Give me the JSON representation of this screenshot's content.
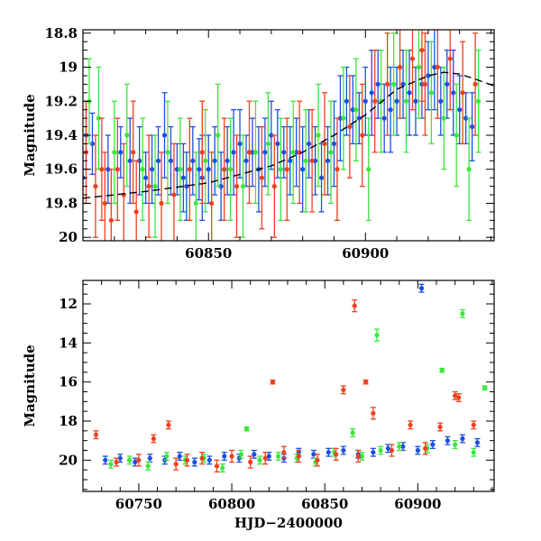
{
  "colors": {
    "blue": "#1a4fe0",
    "green": "#3ce63c",
    "red": "#f0401e",
    "model": "#000000"
  },
  "chart_data": [
    {
      "type": "scatter",
      "title": "",
      "xlabel": "",
      "ylabel": "Magnitude",
      "xlim": [
        60810,
        60941
      ],
      "ylim": [
        20.02,
        18.78
      ],
      "y_inverted": true,
      "xticks": [
        60850,
        60900
      ],
      "yticks": [
        18.8,
        19,
        19.2,
        19.4,
        19.6,
        19.8,
        20
      ],
      "ytick_labels": [
        "18.8",
        "19",
        "19.2",
        "19.4",
        "19.6",
        "19.8",
        "20"
      ],
      "xtick_labels": [
        "60850",
        "60900"
      ],
      "model_curve": {
        "style": "dashed",
        "x": [
          60810,
          60830,
          60850,
          60870,
          60880,
          60890,
          60900,
          60910,
          60920,
          60925,
          60930,
          60935,
          60941
        ],
        "y": [
          19.77,
          19.73,
          19.68,
          19.58,
          19.5,
          19.4,
          19.28,
          19.13,
          19.05,
          19.03,
          19.04,
          19.07,
          19.11
        ]
      },
      "series": [
        {
          "color": "blue",
          "x": [
            60810,
            60811,
            60813,
            60818,
            60822,
            60825,
            60828,
            60830,
            60832,
            60834,
            60836,
            60838,
            60840,
            60842,
            60843,
            60845,
            60847,
            60848,
            60850,
            60852,
            60854,
            60856,
            60858,
            60860,
            60862,
            60864,
            60866,
            60868,
            60870,
            60872,
            60874,
            60876,
            60878,
            60880,
            60882,
            60884,
            60886,
            60888,
            60890,
            60892,
            60894,
            60896,
            60898,
            60900,
            60902,
            60904,
            60906,
            60908,
            60910,
            60912,
            60914,
            60916,
            60918,
            60920,
            60922,
            60924,
            60926,
            60928,
            60930,
            60932,
            60934
          ],
          "y": [
            19.65,
            19.4,
            19.45,
            19.6,
            19.5,
            19.55,
            19.55,
            19.65,
            19.6,
            19.55,
            19.4,
            19.55,
            19.6,
            19.65,
            19.7,
            19.55,
            19.6,
            19.65,
            19.6,
            19.55,
            19.7,
            19.55,
            19.5,
            19.45,
            19.55,
            19.5,
            19.6,
            19.5,
            19.4,
            19.45,
            19.5,
            19.55,
            19.5,
            19.6,
            19.45,
            19.55,
            19.65,
            19.55,
            19.45,
            19.3,
            19.2,
            19.25,
            19.3,
            19.2,
            19.15,
            19.1,
            19.3,
            19.25,
            19.2,
            19.1,
            19.15,
            19.2,
            19.1,
            19.05,
            19.0,
            19.2,
            19.1,
            19.15,
            19.25,
            19.3,
            19.35
          ],
          "yerr": [
            0.15,
            0.2,
            0.18,
            0.2,
            0.15,
            0.25,
            0.2,
            0.15,
            0.2,
            0.2,
            0.25,
            0.2,
            0.15,
            0.2,
            0.2,
            0.2,
            0.18,
            0.25,
            0.2,
            0.2,
            0.2,
            0.2,
            0.25,
            0.2,
            0.15,
            0.2,
            0.25,
            0.2,
            0.2,
            0.2,
            0.15,
            0.2,
            0.2,
            0.25,
            0.2,
            0.2,
            0.2,
            0.2,
            0.25,
            0.25,
            0.2,
            0.2,
            0.15,
            0.2,
            0.25,
            0.2,
            0.2,
            0.25,
            0.2,
            0.2,
            0.25,
            0.2,
            0.2,
            0.2,
            0.25,
            0.2,
            0.2,
            0.25,
            0.2,
            0.15,
            0.2
          ]
        },
        {
          "color": "green",
          "x": [
            60812,
            60815,
            60820,
            60824,
            60829,
            60833,
            60837,
            60841,
            60846,
            60849,
            60853,
            60857,
            60861,
            60865,
            60869,
            60873,
            60877,
            60881,
            60885,
            60889,
            60893,
            60897,
            60901,
            60905,
            60909,
            60913,
            60917,
            60921,
            60925,
            60929,
            60933,
            60936
          ],
          "y": [
            19.2,
            19.3,
            19.5,
            19.4,
            19.6,
            19.7,
            19.5,
            19.6,
            19.8,
            19.55,
            19.4,
            19.6,
            19.7,
            19.5,
            19.45,
            19.6,
            19.5,
            19.55,
            19.4,
            19.5,
            19.3,
            19.25,
            19.6,
            19.2,
            19.1,
            19.2,
            19.0,
            19.15,
            19.3,
            19.4,
            19.6,
            19.2
          ],
          "yerr": [
            0.25,
            0.3,
            0.3,
            0.3,
            0.3,
            0.3,
            0.3,
            0.3,
            0.3,
            0.3,
            0.3,
            0.3,
            0.3,
            0.3,
            0.3,
            0.3,
            0.3,
            0.3,
            0.3,
            0.3,
            0.3,
            0.3,
            0.3,
            0.3,
            0.3,
            0.3,
            0.3,
            0.3,
            0.3,
            0.3,
            0.3,
            0.3
          ]
        },
        {
          "color": "red",
          "x": [
            60811,
            60814,
            60816,
            60817,
            60819,
            60821,
            60823,
            60826,
            60827,
            60831,
            60835,
            60839,
            60844,
            60848,
            60851,
            60855,
            60859,
            60863,
            60867,
            60871,
            60875,
            60879,
            60883,
            60887,
            60891,
            60895,
            60899,
            60903,
            60907,
            60911,
            60915,
            60918,
            60919,
            60923,
            60927,
            60931,
            60935
          ],
          "y": [
            19.5,
            19.7,
            19.6,
            19.8,
            19.9,
            19.6,
            19.75,
            19.5,
            19.85,
            19.7,
            19.8,
            19.75,
            19.6,
            19.5,
            19.8,
            19.6,
            19.7,
            19.5,
            19.65,
            19.7,
            19.6,
            19.5,
            19.55,
            19.45,
            19.6,
            19.35,
            19.4,
            19.2,
            19.1,
            19.0,
            18.95,
            18.9,
            19.1,
            19.0,
            18.95,
            19.15,
            19.1
          ],
          "yerr": [
            0.3,
            0.3,
            0.3,
            0.3,
            0.3,
            0.3,
            0.3,
            0.3,
            0.3,
            0.3,
            0.3,
            0.3,
            0.3,
            0.3,
            0.3,
            0.3,
            0.3,
            0.3,
            0.3,
            0.3,
            0.3,
            0.3,
            0.3,
            0.3,
            0.3,
            0.3,
            0.3,
            0.3,
            0.3,
            0.3,
            0.3,
            0.3,
            0.3,
            0.3,
            0.3,
            0.3,
            0.3
          ]
        }
      ]
    },
    {
      "type": "scatter",
      "title": "",
      "xlabel": "HJD−2400000",
      "ylabel": "Magnitude",
      "xlim": [
        60720,
        60941
      ],
      "ylim": [
        21.6,
        10.8
      ],
      "y_inverted": true,
      "xticks": [
        60750,
        60800,
        60850,
        60900
      ],
      "xtick_labels": [
        "60750",
        "60800",
        "60850",
        "60900"
      ],
      "yticks": [
        12,
        14,
        16,
        18,
        20
      ],
      "ytick_labels": [
        "12",
        "14",
        "16",
        "18",
        "20"
      ],
      "series": [
        {
          "color": "blue",
          "x": [
            60732,
            60740,
            60748,
            60756,
            60764,
            60772,
            60780,
            60788,
            60796,
            60804,
            60812,
            60820,
            60828,
            60836,
            60844,
            60852,
            60860,
            60868,
            60876,
            60884,
            60892,
            60900,
            60902,
            60908,
            60916,
            60924,
            60932
          ],
          "y": [
            20.0,
            19.9,
            20.1,
            19.9,
            20.0,
            19.8,
            20.1,
            20.0,
            19.8,
            19.9,
            19.7,
            19.8,
            19.9,
            19.6,
            19.7,
            19.6,
            19.5,
            19.7,
            19.6,
            19.4,
            19.3,
            19.5,
            11.2,
            19.2,
            19.0,
            18.9,
            19.1
          ],
          "yerr": [
            0.2,
            0.2,
            0.2,
            0.2,
            0.2,
            0.2,
            0.2,
            0.2,
            0.2,
            0.2,
            0.2,
            0.2,
            0.2,
            0.2,
            0.2,
            0.2,
            0.2,
            0.2,
            0.2,
            0.2,
            0.2,
            0.2,
            0.2,
            0.2,
            0.2,
            0.2,
            0.2
          ]
        },
        {
          "color": "green",
          "x": [
            60735,
            60745,
            60755,
            60765,
            60775,
            60785,
            60795,
            60805,
            60808,
            60815,
            60825,
            60835,
            60845,
            60855,
            60865,
            60870,
            60878,
            60880,
            60890,
            60905,
            60913,
            60920,
            60924,
            60930,
            60936
          ],
          "y": [
            20.2,
            20.0,
            20.3,
            19.8,
            20.0,
            19.9,
            20.4,
            19.7,
            18.4,
            20.0,
            19.8,
            19.9,
            20.1,
            19.6,
            18.6,
            19.8,
            13.6,
            19.5,
            19.3,
            19.4,
            15.4,
            19.2,
            12.5,
            19.6,
            16.3
          ],
          "yerr": [
            0.2,
            0.2,
            0.2,
            0.2,
            0.2,
            0.2,
            0.2,
            0.2,
            0.1,
            0.2,
            0.2,
            0.2,
            0.2,
            0.2,
            0.2,
            0.2,
            0.3,
            0.2,
            0.2,
            0.2,
            0.1,
            0.2,
            0.2,
            0.2,
            0.1
          ]
        },
        {
          "color": "red",
          "x": [
            60727,
            60738,
            60750,
            60758,
            60766,
            60770,
            60776,
            60784,
            60792,
            60800,
            60810,
            60818,
            60822,
            60828,
            60836,
            60846,
            60856,
            60860,
            60866,
            60868,
            60872,
            60876,
            60886,
            60896,
            60904,
            60912,
            60920,
            60922,
            60930
          ],
          "y": [
            18.7,
            20.1,
            20.0,
            18.9,
            18.2,
            20.2,
            20.0,
            19.9,
            20.3,
            19.8,
            20.1,
            19.9,
            16.0,
            19.6,
            19.8,
            20.0,
            19.7,
            16.4,
            12.1,
            19.8,
            16.0,
            17.6,
            19.5,
            18.2,
            19.4,
            18.3,
            16.7,
            16.8,
            18.2
          ],
          "yerr": [
            0.2,
            0.2,
            0.3,
            0.2,
            0.2,
            0.3,
            0.3,
            0.3,
            0.3,
            0.3,
            0.3,
            0.3,
            0.1,
            0.3,
            0.3,
            0.3,
            0.3,
            0.2,
            0.3,
            0.3,
            0.1,
            0.3,
            0.3,
            0.2,
            0.3,
            0.2,
            0.2,
            0.2,
            0.2
          ]
        }
      ]
    }
  ]
}
